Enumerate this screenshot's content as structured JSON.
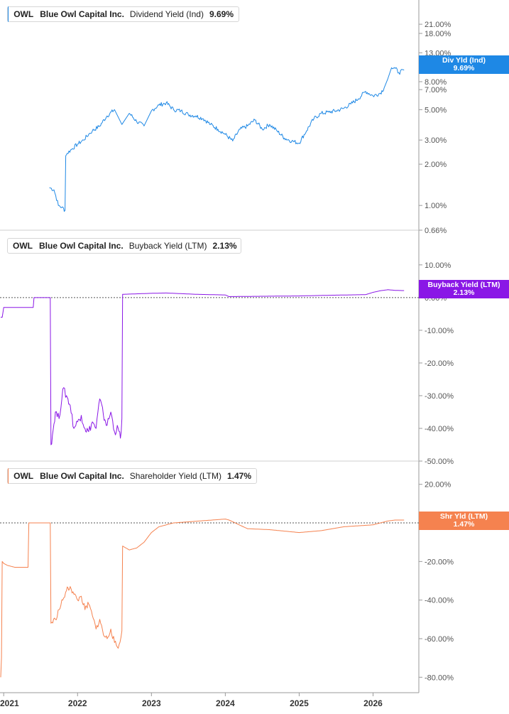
{
  "colors": {
    "dividend": "#1e88e5",
    "buyback": "#8a17e6",
    "shareholder": "#f5824f",
    "axis": "#9a9a9a",
    "tick_text": "#555555"
  },
  "chart_data": [
    {
      "type": "line",
      "panel": "top",
      "legend": {
        "ticker": "OWL",
        "company": "Blue Owl Capital Inc.",
        "metric": "Dividend Yield (Ind)",
        "value": "9.69%"
      },
      "badge": {
        "label": "Div Yld (Ind)",
        "value": "9.69%"
      },
      "scale": "log",
      "ylim": [
        0.66,
        28
      ],
      "yticks": [
        {
          "v": 21,
          "label": "21.00%"
        },
        {
          "v": 18,
          "label": "18.00%"
        },
        {
          "v": 13,
          "label": "13.00%"
        },
        {
          "v": 8,
          "label": "8.00%"
        },
        {
          "v": 7,
          "label": "7.00%"
        },
        {
          "v": 5,
          "label": "5.00%"
        },
        {
          "v": 3,
          "label": "3.00%"
        },
        {
          "v": 2,
          "label": "2.00%"
        },
        {
          "v": 1,
          "label": "1.00%"
        },
        {
          "v": 0.66,
          "label": "0.66%"
        }
      ],
      "series": [
        {
          "x": [
            2021.62,
            2021.68,
            2021.74,
            2021.79,
            2021.83,
            2021.84,
            2021.86,
            2021.93,
            2022.0,
            2022.08,
            2022.15,
            2022.2,
            2022.3,
            2022.4,
            2022.5,
            2022.6,
            2022.7,
            2022.8,
            2022.9,
            2023.0,
            2023.1,
            2023.2,
            2023.3,
            2023.4,
            2023.5,
            2023.6,
            2023.7,
            2023.8,
            2023.9,
            2024.0,
            2024.1,
            2024.2,
            2024.3,
            2024.4,
            2024.5,
            2024.6,
            2024.7,
            2024.8,
            2024.9,
            2025.0,
            2025.1,
            2025.2,
            2025.3,
            2025.4,
            2025.5,
            2025.6,
            2025.7,
            2025.8,
            2025.9,
            2026.0,
            2026.1,
            2026.15,
            2026.2,
            2026.25,
            2026.3,
            2026.35,
            2026.42
          ],
          "y": [
            1.35,
            1.3,
            1.0,
            0.97,
            0.92,
            2.3,
            2.4,
            2.6,
            2.8,
            3.0,
            3.3,
            3.5,
            3.8,
            4.5,
            5.0,
            3.9,
            4.7,
            4.1,
            3.8,
            4.9,
            5.4,
            5.6,
            5.0,
            4.9,
            4.6,
            4.5,
            4.3,
            3.9,
            3.6,
            3.3,
            2.95,
            3.6,
            3.8,
            4.2,
            3.6,
            3.9,
            3.5,
            3.1,
            2.95,
            2.85,
            3.5,
            4.3,
            4.7,
            4.8,
            4.9,
            5.1,
            5.5,
            6.0,
            6.8,
            6.3,
            6.6,
            7.2,
            8.4,
            10.1,
            10.0,
            9.3,
            9.69
          ]
        }
      ]
    },
    {
      "type": "line",
      "panel": "middle",
      "legend": {
        "ticker": "OWL",
        "company": "Blue Owl Capital Inc.",
        "metric": "Buyback Yield (LTM)",
        "value": "2.13%"
      },
      "badge": {
        "label": "Buyback Yield (LTM)",
        "value": "2.13%"
      },
      "scale": "linear",
      "ylim": [
        -50,
        18
      ],
      "reference_line": 0,
      "yticks": [
        {
          "v": 10,
          "label": "10.00%"
        },
        {
          "v": 0,
          "label": "0.00%"
        },
        {
          "v": -10,
          "label": "-10.00%"
        },
        {
          "v": -20,
          "label": "-20.00%"
        },
        {
          "v": -30,
          "label": "-30.00%"
        },
        {
          "v": -40,
          "label": "-40.00%"
        },
        {
          "v": -50,
          "label": "-50.00%"
        }
      ],
      "series": [
        {
          "x": [
            2020.96,
            2020.98,
            2021.0,
            2021.05,
            2021.4,
            2021.41,
            2021.63,
            2021.64,
            2021.66,
            2021.7,
            2021.75,
            2021.8,
            2021.85,
            2021.9,
            2021.95,
            2022.0,
            2022.05,
            2022.1,
            2022.15,
            2022.2,
            2022.25,
            2022.3,
            2022.35,
            2022.4,
            2022.45,
            2022.5,
            2022.55,
            2022.58,
            2022.6,
            2022.61,
            2023.0,
            2023.2,
            2023.6,
            2024.0,
            2024.05,
            2024.5,
            2025.0,
            2025.4,
            2025.9,
            2026.0,
            2026.1,
            2026.2,
            2026.3,
            2026.42
          ],
          "y": [
            -6,
            -6,
            -3,
            -3,
            -3,
            0,
            0,
            -45,
            -42,
            -35,
            -37,
            -28,
            -30,
            -33,
            -40,
            -38,
            -36,
            -40,
            -41,
            -38,
            -40,
            -31,
            -36,
            -39,
            -35,
            -41,
            -40,
            -43,
            -37,
            1,
            1.3,
            1.4,
            1.0,
            0.8,
            0.3,
            0.4,
            0.5,
            0.7,
            0.9,
            1.6,
            2.1,
            2.4,
            2.2,
            2.13
          ]
        }
      ]
    },
    {
      "type": "line",
      "panel": "bottom",
      "legend": {
        "ticker": "OWL",
        "company": "Blue Owl Capital Inc.",
        "metric": "Shareholder Yield (LTM)",
        "value": "1.47%"
      },
      "badge": {
        "label": "Shr Yld (LTM)",
        "value": "1.47%"
      },
      "scale": "linear",
      "ylim": [
        -88,
        28
      ],
      "reference_line": 0,
      "yticks": [
        {
          "v": 20,
          "label": "20.00%"
        },
        {
          "v": 0,
          "label": "0.00%"
        },
        {
          "v": -20,
          "label": "-20.00%"
        },
        {
          "v": -40,
          "label": "-40.00%"
        },
        {
          "v": -60,
          "label": "-60.00%"
        },
        {
          "v": -80,
          "label": "-80.00%"
        }
      ],
      "series": [
        {
          "x": [
            2020.96,
            2020.97,
            2020.98,
            2021.0,
            2021.05,
            2021.15,
            2021.33,
            2021.34,
            2021.4,
            2021.6,
            2021.63,
            2021.64,
            2021.7,
            2021.75,
            2021.8,
            2021.85,
            2021.9,
            2021.95,
            2022.0,
            2022.05,
            2022.1,
            2022.15,
            2022.2,
            2022.25,
            2022.3,
            2022.35,
            2022.4,
            2022.45,
            2022.5,
            2022.55,
            2022.6,
            2022.61,
            2022.7,
            2022.8,
            2022.9,
            2023.0,
            2023.1,
            2023.3,
            2024.0,
            2024.05,
            2024.3,
            2024.6,
            2025.0,
            2025.3,
            2025.6,
            2026.0,
            2026.1,
            2026.2,
            2026.3,
            2026.42
          ],
          "y": [
            -80,
            -70,
            -20,
            -21,
            -22,
            -23,
            -23,
            0,
            0,
            0,
            0,
            -52,
            -50,
            -45,
            -40,
            -35,
            -33,
            -37,
            -40,
            -38,
            -45,
            -42,
            -48,
            -55,
            -50,
            -58,
            -60,
            -55,
            -62,
            -65,
            -56,
            -12,
            -14,
            -13,
            -10,
            -5,
            -2,
            0,
            2,
            1.5,
            -3,
            -3.5,
            -5,
            -4,
            -2,
            -1,
            0,
            1,
            1.5,
            1.47
          ]
        }
      ]
    },
    {
      "type": "line",
      "panel": "x-axis",
      "xticks": [
        {
          "v": 2021,
          "label": "2021"
        },
        {
          "v": 2022,
          "label": "2022"
        },
        {
          "v": 2023,
          "label": "2023"
        },
        {
          "v": 2024,
          "label": "2024"
        },
        {
          "v": 2025,
          "label": "2025"
        },
        {
          "v": 2026,
          "label": "2026"
        }
      ]
    }
  ]
}
